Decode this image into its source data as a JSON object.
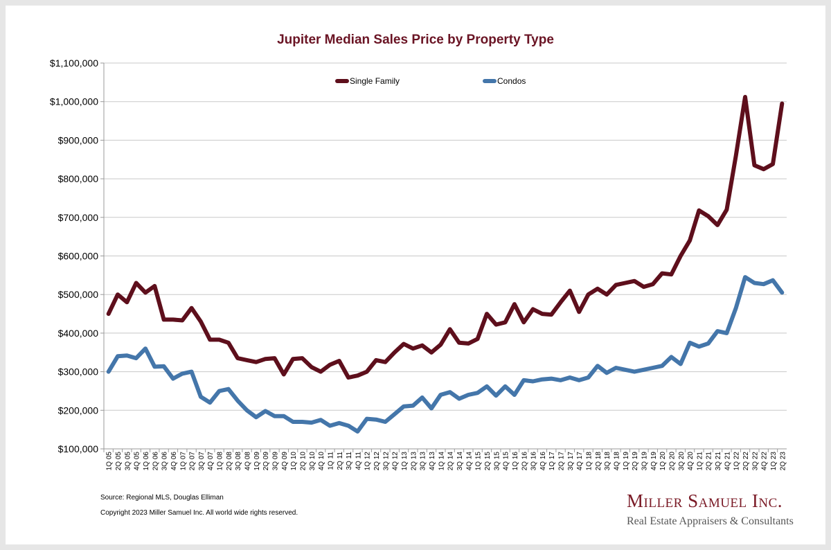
{
  "chart_data": {
    "type": "line",
    "title": "Jupiter Median Sales Price by Property Type",
    "xlabel": "",
    "ylabel": "",
    "ylim": [
      100000,
      1100000
    ],
    "yticks": [
      100000,
      200000,
      300000,
      400000,
      500000,
      600000,
      700000,
      800000,
      900000,
      1000000,
      1100000
    ],
    "ytick_labels": [
      "$100,000",
      "$200,000",
      "$300,000",
      "$400,000",
      "$500,000",
      "$600,000",
      "$700,000",
      "$800,000",
      "$900,000",
      "$1,000,000",
      "$1,100,000"
    ],
    "grid": true,
    "legend_placement": "top-center",
    "categories": [
      "1Q 05",
      "2Q 05",
      "3Q 05",
      "4Q 05",
      "1Q 06",
      "2Q 06",
      "3Q 06",
      "4Q 06",
      "1Q 07",
      "2Q 07",
      "3Q 07",
      "4Q 07",
      "1Q 08",
      "2Q 08",
      "3Q 08",
      "4Q 08",
      "1Q 09",
      "2Q 09",
      "3Q 09",
      "4Q 09",
      "1Q 10",
      "2Q 10",
      "3Q 10",
      "4Q 10",
      "1Q 11",
      "2Q 11",
      "3Q 11",
      "4Q 11",
      "1Q 12",
      "2Q 12",
      "3Q 12",
      "4Q 12",
      "1Q 13",
      "2Q 13",
      "3Q 13",
      "4Q 13",
      "1Q 14",
      "2Q 14",
      "3Q 14",
      "4Q 14",
      "1Q 15",
      "2Q 15",
      "3Q 15",
      "4Q 15",
      "1Q 16",
      "2Q 16",
      "3Q 16",
      "4Q 16",
      "1Q 17",
      "2Q 17",
      "3Q 17",
      "4Q 17",
      "1Q 18",
      "2Q 18",
      "3Q 18",
      "4Q 18",
      "1Q 19",
      "2Q 19",
      "3Q 19",
      "4Q 19",
      "1Q 20",
      "2Q 20",
      "3Q 20",
      "4Q 20",
      "1Q 21",
      "2Q 21",
      "3Q 21",
      "4Q 21",
      "1Q 22",
      "2Q 22",
      "3Q 22",
      "4Q 22",
      "1Q 23",
      "2Q 23"
    ],
    "series": [
      {
        "name": "Single Family",
        "color": "#5e0f1c",
        "values": [
          450000,
          500000,
          480000,
          530000,
          505000,
          522000,
          435000,
          435000,
          433000,
          465000,
          430000,
          383000,
          383000,
          375000,
          335000,
          330000,
          325000,
          333000,
          335000,
          293000,
          333000,
          335000,
          312000,
          300000,
          318000,
          328000,
          285000,
          290000,
          300000,
          330000,
          325000,
          350000,
          372000,
          360000,
          368000,
          350000,
          370000,
          410000,
          375000,
          373000,
          385000,
          450000,
          422000,
          428000,
          475000,
          428000,
          462000,
          450000,
          448000,
          480000,
          510000,
          455000,
          500000,
          515000,
          500000,
          525000,
          530000,
          535000,
          520000,
          527000,
          555000,
          552000,
          600000,
          640000,
          718000,
          703000,
          680000,
          720000,
          860000,
          1012000,
          835000,
          825000,
          838000,
          995000
        ]
      },
      {
        "name": "Condos",
        "color": "#4476aa",
        "values": [
          300000,
          340000,
          342000,
          335000,
          360000,
          313000,
          314000,
          282000,
          295000,
          300000,
          235000,
          220000,
          250000,
          255000,
          225000,
          200000,
          182000,
          198000,
          185000,
          185000,
          170000,
          170000,
          168000,
          175000,
          160000,
          167000,
          160000,
          145000,
          178000,
          176000,
          170000,
          190000,
          210000,
          212000,
          233000,
          205000,
          240000,
          247000,
          230000,
          240000,
          245000,
          262000,
          238000,
          262000,
          240000,
          278000,
          275000,
          280000,
          282000,
          278000,
          285000,
          278000,
          285000,
          315000,
          297000,
          310000,
          305000,
          300000,
          305000,
          310000,
          315000,
          338000,
          320000,
          375000,
          365000,
          373000,
          405000,
          400000,
          465000,
          545000,
          530000,
          527000,
          537000,
          505000
        ]
      }
    ]
  },
  "footer": {
    "source": "Source: Regional MLS, Douglas Elliman",
    "copyright": "Copyright 2023 Miller Samuel Inc.  All world wide rights reserved.",
    "logo_name": "Miller Samuel Inc.",
    "logo_tagline": "Real Estate Appraisers & Consultants"
  }
}
